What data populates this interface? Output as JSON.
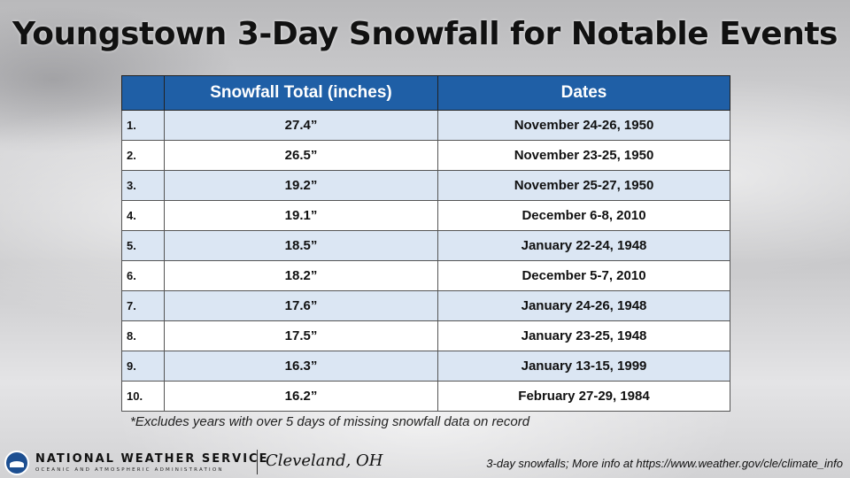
{
  "title": "Youngstown 3-Day Snowfall for Notable Events",
  "table": {
    "headers": [
      "",
      "Snowfall Total (inches)",
      "Dates"
    ],
    "rows": [
      {
        "rank": "1.",
        "total": "27.4”",
        "dates": "November 24-26, 1950"
      },
      {
        "rank": "2.",
        "total": "26.5”",
        "dates": "November 23-25, 1950"
      },
      {
        "rank": "3.",
        "total": "19.2”",
        "dates": "November 25-27, 1950"
      },
      {
        "rank": "4.",
        "total": "19.1”",
        "dates": "December 6-8, 2010"
      },
      {
        "rank": "5.",
        "total": "18.5”",
        "dates": "January 22-24, 1948"
      },
      {
        "rank": "6.",
        "total": "18.2”",
        "dates": "December 5-7, 2010"
      },
      {
        "rank": "7.",
        "total": "17.6”",
        "dates": "January 24-26, 1948"
      },
      {
        "rank": "8.",
        "total": "17.5”",
        "dates": "January 23-25, 1948"
      },
      {
        "rank": "9.",
        "total": "16.3”",
        "dates": "January 13-15, 1999"
      },
      {
        "rank": "10.",
        "total": "16.2”",
        "dates": "February 27-29, 1984"
      }
    ]
  },
  "footnote": "*Excludes years with over 5 days of missing snowfall data on record",
  "footer": {
    "logo_icon": "noaa-logo-icon",
    "org_name": "NATIONAL WEATHER SERVICE",
    "org_sub": "OCEANIC AND ATMOSPHERIC ADMINISTRATION",
    "office": "Cleveland, OH",
    "more_info": "3-day snowfalls; More info at https://www.weather.gov/cle/climate_info"
  },
  "colors": {
    "header_bg": "#1f5fa6",
    "odd_row_bg": "#dbe6f3",
    "even_row_bg": "#ffffff"
  }
}
